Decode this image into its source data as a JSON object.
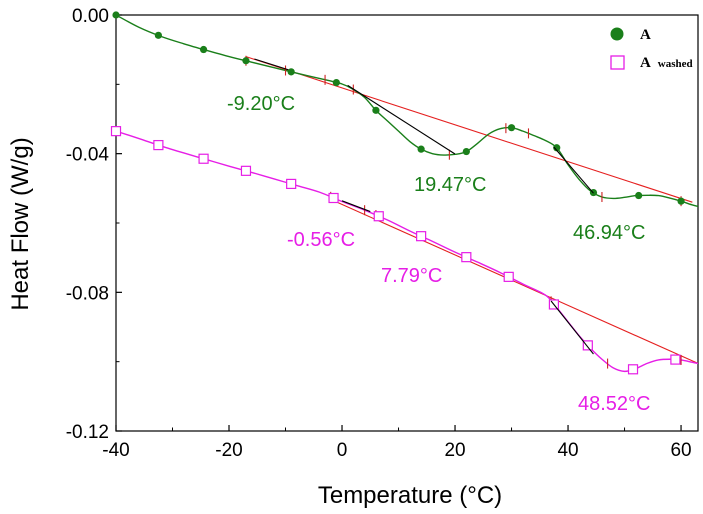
{
  "chart_data": {
    "type": "line",
    "title": "",
    "xlabel": "Temperature (°C)",
    "ylabel": "Heat Flow (W/g)",
    "xlim": [
      -40,
      63
    ],
    "ylim": [
      -0.12,
      0.0
    ],
    "x_ticks": [
      -40,
      -20,
      0,
      20,
      40,
      60
    ],
    "x_tick_labels": [
      "-40",
      "-20",
      "0",
      "20",
      "40",
      "60"
    ],
    "y_ticks": [
      0.0,
      -0.04,
      -0.08,
      -0.12
    ],
    "y_tick_labels": [
      "0.00",
      "-0.04",
      "-0.08",
      "-0.12"
    ],
    "grid": false,
    "legend_position": "top-right",
    "colors": {
      "A": "#1a7f1a",
      "A_washed": "#e61ee6",
      "tangent": "#e52020",
      "glass": "#000000",
      "tick": "#cc2222"
    },
    "series": [
      {
        "name": "A",
        "legend_label": "A",
        "legend_sub": "",
        "marker": "circle",
        "color": "#1a7f1a",
        "x": [
          -40,
          -36,
          -32,
          -28,
          -24,
          -20,
          -16,
          -12,
          -8,
          -4,
          0,
          2,
          4,
          6,
          8,
          10,
          12,
          14,
          16,
          18,
          20,
          22,
          24,
          26,
          28,
          30,
          32,
          34,
          36,
          38,
          40,
          42,
          44,
          46,
          48,
          50,
          52,
          54,
          56,
          58,
          60,
          62,
          63
        ],
        "y": [
          0.0,
          -0.0035,
          -0.0062,
          -0.0083,
          -0.0102,
          -0.012,
          -0.0136,
          -0.0152,
          -0.0168,
          -0.0183,
          -0.0199,
          -0.0215,
          -0.0238,
          -0.0275,
          -0.0305,
          -0.0335,
          -0.0365,
          -0.0387,
          -0.04,
          -0.0404,
          -0.0402,
          -0.0394,
          -0.037,
          -0.0343,
          -0.0328,
          -0.0325,
          -0.0335,
          -0.0348,
          -0.0362,
          -0.0383,
          -0.0432,
          -0.0475,
          -0.0508,
          -0.0525,
          -0.0529,
          -0.0526,
          -0.0521,
          -0.052,
          -0.0521,
          -0.0528,
          -0.0537,
          -0.0548,
          -0.0552
        ],
        "marker_x": [
          -40,
          -32.5,
          -24.5,
          -17,
          -9,
          -1,
          6,
          14,
          22,
          30,
          38,
          44.5,
          52.5,
          60
        ]
      },
      {
        "name": "A washed",
        "legend_label": "A",
        "legend_sub": "washed",
        "marker": "square",
        "color": "#e61ee6",
        "x": [
          -40,
          -36,
          -32,
          -28,
          -24,
          -20,
          -16,
          -12,
          -8,
          -4,
          0,
          4,
          8,
          12,
          16,
          20,
          24,
          28,
          32,
          36,
          38,
          40,
          42,
          44,
          46,
          48,
          50,
          52,
          54,
          56,
          58,
          60,
          62,
          63
        ],
        "y": [
          -0.0335,
          -0.0356,
          -0.0378,
          -0.0398,
          -0.0417,
          -0.0436,
          -0.0454,
          -0.0473,
          -0.0492,
          -0.0511,
          -0.0538,
          -0.0563,
          -0.0591,
          -0.0623,
          -0.0653,
          -0.0684,
          -0.0713,
          -0.0743,
          -0.0776,
          -0.0808,
          -0.0844,
          -0.0885,
          -0.0926,
          -0.0962,
          -0.0993,
          -0.1018,
          -0.1028,
          -0.102,
          -0.1005,
          -0.0995,
          -0.0993,
          -0.0995,
          -0.1002,
          -0.1005
        ],
        "marker_x": [
          -40,
          -32.5,
          -24.5,
          -17,
          -9,
          -1.5,
          6.5,
          14,
          22,
          29.5,
          37.5,
          43.5,
          51.5,
          59
        ]
      }
    ],
    "tangents": [
      {
        "series": "A",
        "x": [
          -17,
          62
        ],
        "y": [
          -0.012,
          -0.054
        ]
      },
      {
        "series": "A washed",
        "x": [
          -2,
          63
        ],
        "y": [
          -0.0532,
          -0.1005
        ]
      }
    ],
    "transition_lines": [
      {
        "series": "A",
        "x": [
          -15.5,
          -9.5
        ],
        "y": [
          -0.0127,
          -0.0158
        ]
      },
      {
        "series": "A",
        "x": [
          1,
          20
        ],
        "y": [
          -0.0203,
          -0.0401
        ]
      },
      {
        "series": "A",
        "x": [
          37.5,
          44.5
        ],
        "y": [
          -0.0381,
          -0.0514
        ]
      },
      {
        "series": "A washed",
        "x": [
          0,
          5
        ],
        "y": [
          -0.0536,
          -0.0567
        ]
      },
      {
        "series": "A washed",
        "x": [
          37,
          44.5
        ],
        "y": [
          -0.0825,
          -0.0978
        ]
      }
    ],
    "annotations": [
      {
        "series": "A",
        "text": "-9.20°C"
      },
      {
        "series": "A",
        "text": "19.47°C"
      },
      {
        "series": "A",
        "text": "46.94°C"
      },
      {
        "series": "A washed",
        "text": "-0.56°C"
      },
      {
        "series": "A washed",
        "text": "7.79°C"
      },
      {
        "series": "A washed",
        "text": "48.52°C"
      }
    ]
  }
}
